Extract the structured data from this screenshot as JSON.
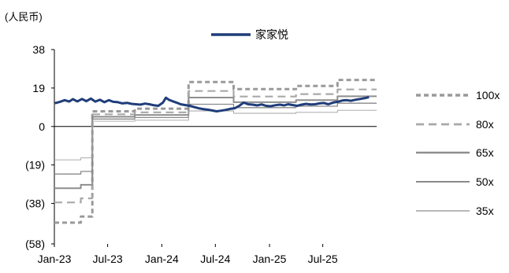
{
  "chart_data": {
    "type": "line",
    "unit_label": "(人民币)",
    "x_ticks": [
      "Jan-23",
      "Jul-23",
      "Jan-24",
      "Jul-24",
      "Jan-25",
      "Jul-25"
    ],
    "y_ticks": [
      38,
      19,
      0,
      -19,
      -38,
      -58
    ],
    "y_tick_labels": [
      "38",
      "19",
      "0",
      "(19)",
      "(38)",
      "(58)"
    ],
    "ylim": [
      -58,
      38
    ],
    "xlim": [
      "2023-01-01",
      "2025-12-31"
    ],
    "series": [
      {
        "name": "家家悦",
        "color": "#1f3d7a",
        "style": "solid-thick",
        "points": [
          [
            "2023-01-03",
            11.5
          ],
          [
            "2023-01-20",
            12.2
          ],
          [
            "2023-02-05",
            13.0
          ],
          [
            "2023-02-20",
            12.3
          ],
          [
            "2023-03-05",
            13.5
          ],
          [
            "2023-03-20",
            12.4
          ],
          [
            "2023-04-05",
            13.6
          ],
          [
            "2023-04-20",
            12.5
          ],
          [
            "2023-05-05",
            13.8
          ],
          [
            "2023-05-20",
            12.3
          ],
          [
            "2023-06-05",
            13.2
          ],
          [
            "2023-06-20",
            12.0
          ],
          [
            "2023-07-05",
            13.0
          ],
          [
            "2023-07-20",
            12.2
          ],
          [
            "2023-08-05",
            12.0
          ],
          [
            "2023-08-20",
            11.4
          ],
          [
            "2023-09-05",
            11.7
          ],
          [
            "2023-09-20",
            11.2
          ],
          [
            "2023-10-05",
            11.0
          ],
          [
            "2023-10-20",
            10.8
          ],
          [
            "2023-11-05",
            11.3
          ],
          [
            "2023-11-20",
            11.0
          ],
          [
            "2023-12-05",
            10.5
          ],
          [
            "2023-12-20",
            10.2
          ],
          [
            "2024-01-05",
            11.8
          ],
          [
            "2024-01-15",
            14.2
          ],
          [
            "2024-01-25",
            13.2
          ],
          [
            "2024-02-05",
            12.6
          ],
          [
            "2024-02-20",
            11.8
          ],
          [
            "2024-03-05",
            11.0
          ],
          [
            "2024-03-20",
            10.6
          ],
          [
            "2024-04-05",
            10.2
          ],
          [
            "2024-04-20",
            9.6
          ],
          [
            "2024-05-05",
            9.0
          ],
          [
            "2024-05-20",
            8.6
          ],
          [
            "2024-06-05",
            8.3
          ],
          [
            "2024-06-20",
            7.9
          ],
          [
            "2024-07-05",
            7.5
          ],
          [
            "2024-07-20",
            7.8
          ],
          [
            "2024-08-05",
            8.2
          ],
          [
            "2024-08-20",
            8.7
          ],
          [
            "2024-09-05",
            9.0
          ],
          [
            "2024-09-20",
            10.2
          ],
          [
            "2024-10-05",
            11.8
          ],
          [
            "2024-10-20",
            11.0
          ],
          [
            "2024-11-05",
            10.8
          ],
          [
            "2024-11-20",
            10.4
          ],
          [
            "2024-12-05",
            10.9
          ],
          [
            "2024-12-20",
            10.2
          ],
          [
            "2025-01-05",
            10.0
          ],
          [
            "2025-01-20",
            10.5
          ],
          [
            "2025-02-05",
            10.8
          ],
          [
            "2025-02-20",
            10.4
          ],
          [
            "2025-03-05",
            11.0
          ],
          [
            "2025-03-20",
            10.6
          ],
          [
            "2025-04-05",
            10.2
          ],
          [
            "2025-04-20",
            10.8
          ],
          [
            "2025-05-05",
            11.2
          ],
          [
            "2025-05-20",
            10.9
          ],
          [
            "2025-06-05",
            11.0
          ],
          [
            "2025-06-20",
            11.4
          ],
          [
            "2025-07-05",
            11.6
          ],
          [
            "2025-07-20",
            11.0
          ],
          [
            "2025-08-05",
            11.8
          ],
          [
            "2025-08-20",
            12.2
          ],
          [
            "2025-09-05",
            12.8
          ],
          [
            "2025-09-20",
            13.0
          ],
          [
            "2025-10-05",
            12.7
          ],
          [
            "2025-10-20",
            13.2
          ],
          [
            "2025-11-05",
            13.6
          ],
          [
            "2025-11-20",
            14.0
          ],
          [
            "2025-12-05",
            14.5
          ]
        ]
      },
      {
        "name": "100x",
        "color": "#9a9a9a",
        "style": "dashed-short",
        "points": [
          [
            "2023-01-01",
            -47.5
          ],
          [
            "2023-04-01",
            -47.5
          ],
          [
            "2023-04-01",
            -44.5
          ],
          [
            "2023-05-10",
            -44.5
          ],
          [
            "2023-05-10",
            7.5
          ],
          [
            "2023-10-01",
            7.5
          ],
          [
            "2023-10-01",
            8.8
          ],
          [
            "2024-04-01",
            8.8
          ],
          [
            "2024-04-01",
            22.0
          ],
          [
            "2024-09-01",
            22.0
          ],
          [
            "2024-09-01",
            18.5
          ],
          [
            "2025-04-01",
            18.5
          ],
          [
            "2025-04-01",
            20.0
          ],
          [
            "2025-08-20",
            20.0
          ],
          [
            "2025-08-20",
            23.0
          ],
          [
            "2025-12-31",
            23.0
          ]
        ]
      },
      {
        "name": "80x",
        "color": "#a8a8a8",
        "style": "dashed-long",
        "points": [
          [
            "2023-01-01",
            -37.5
          ],
          [
            "2023-04-01",
            -37.5
          ],
          [
            "2023-04-01",
            -35.5
          ],
          [
            "2023-05-10",
            -35.5
          ],
          [
            "2023-05-10",
            6.0
          ],
          [
            "2023-10-01",
            6.0
          ],
          [
            "2023-10-01",
            7.0
          ],
          [
            "2024-04-01",
            7.0
          ],
          [
            "2024-04-01",
            17.5
          ],
          [
            "2024-09-01",
            17.5
          ],
          [
            "2024-09-01",
            14.8
          ],
          [
            "2025-04-01",
            14.8
          ],
          [
            "2025-04-01",
            16.0
          ],
          [
            "2025-08-20",
            16.0
          ],
          [
            "2025-08-20",
            18.3
          ],
          [
            "2025-12-31",
            18.3
          ]
        ]
      },
      {
        "name": "65x",
        "color": "#8e8e8e",
        "style": "solid-medium",
        "points": [
          [
            "2023-01-01",
            -30.5
          ],
          [
            "2023-04-01",
            -30.5
          ],
          [
            "2023-04-01",
            -28.8
          ],
          [
            "2023-05-10",
            -28.8
          ],
          [
            "2023-05-10",
            4.8
          ],
          [
            "2023-10-01",
            4.8
          ],
          [
            "2023-10-01",
            5.7
          ],
          [
            "2024-04-01",
            5.7
          ],
          [
            "2024-04-01",
            14.3
          ],
          [
            "2024-09-01",
            14.3
          ],
          [
            "2024-09-01",
            12.0
          ],
          [
            "2025-04-01",
            12.0
          ],
          [
            "2025-04-01",
            13.0
          ],
          [
            "2025-08-20",
            13.0
          ],
          [
            "2025-08-20",
            14.9
          ],
          [
            "2025-12-31",
            14.9
          ]
        ]
      },
      {
        "name": "50x",
        "color": "#8a8a8a",
        "style": "solid-thin",
        "points": [
          [
            "2023-01-01",
            -23.5
          ],
          [
            "2023-04-01",
            -23.5
          ],
          [
            "2023-04-01",
            -22.2
          ],
          [
            "2023-05-10",
            -22.2
          ],
          [
            "2023-05-10",
            3.7
          ],
          [
            "2023-10-01",
            3.7
          ],
          [
            "2023-10-01",
            4.4
          ],
          [
            "2024-04-01",
            4.4
          ],
          [
            "2024-04-01",
            11.0
          ],
          [
            "2024-09-01",
            11.0
          ],
          [
            "2024-09-01",
            9.3
          ],
          [
            "2025-04-01",
            9.3
          ],
          [
            "2025-04-01",
            10.0
          ],
          [
            "2025-08-20",
            10.0
          ],
          [
            "2025-08-20",
            11.5
          ],
          [
            "2025-12-31",
            11.5
          ]
        ]
      },
      {
        "name": "35x",
        "color": "#a0a0a0",
        "style": "solid-hair",
        "points": [
          [
            "2023-01-01",
            -16.5
          ],
          [
            "2023-04-01",
            -16.5
          ],
          [
            "2023-04-01",
            -15.5
          ],
          [
            "2023-05-10",
            -15.5
          ],
          [
            "2023-05-10",
            2.6
          ],
          [
            "2023-10-01",
            2.6
          ],
          [
            "2023-10-01",
            3.1
          ],
          [
            "2024-04-01",
            3.1
          ],
          [
            "2024-04-01",
            7.7
          ],
          [
            "2024-09-01",
            7.7
          ],
          [
            "2024-09-01",
            6.5
          ],
          [
            "2025-04-01",
            6.5
          ],
          [
            "2025-04-01",
            7.0
          ],
          [
            "2025-08-20",
            7.0
          ],
          [
            "2025-08-20",
            8.0
          ],
          [
            "2025-12-31",
            8.0
          ]
        ]
      }
    ]
  }
}
